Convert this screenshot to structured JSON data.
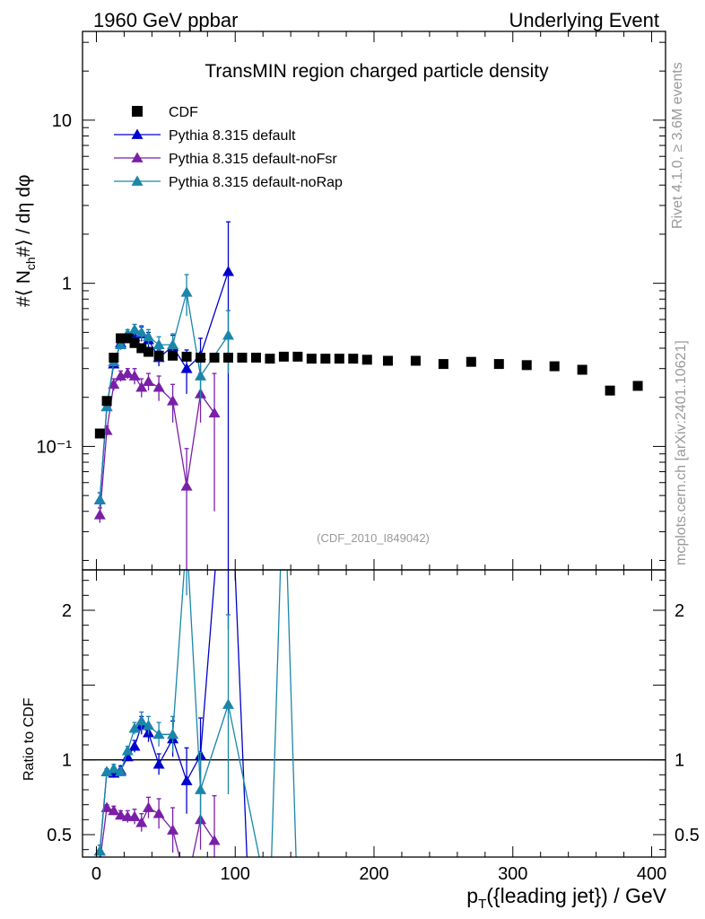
{
  "header": {
    "left": "1960 GeV ppbar",
    "right": "Underlying Event"
  },
  "side_labels": {
    "rivet": "Rivet 4.1.0, ≥ 3.6M events",
    "mcplots": "mcplots.cern.ch [arXiv:2401.10621]"
  },
  "chart_data": {
    "type": "scatter",
    "title": "TransMIN region charged particle density",
    "analysis_tag": "(CDF_2010_I849042)",
    "ylabel_main": {
      "base": "#⟨ N",
      "sub": "ch",
      "rest": "#⟩ / dη dφ"
    },
    "ylabel_ratio": "Ratio to CDF",
    "xlabel": {
      "base": "p",
      "sub": "T",
      "rest": "({leading jet}) / GeV"
    },
    "x_range": [
      -10,
      410
    ],
    "y_main_range_log": [
      0.0175,
      35
    ],
    "y_ratio_range": [
      0.35,
      2.27
    ],
    "x_ticks": [
      {
        "v": 0,
        "t": "0"
      },
      {
        "v": 100,
        "t": "100"
      },
      {
        "v": 200,
        "t": "200"
      },
      {
        "v": 300,
        "t": "300"
      },
      {
        "v": 400,
        "t": "400"
      }
    ],
    "y_main_ticks": [
      {
        "v": 0.1,
        "t": "10⁻¹"
      },
      {
        "v": 1,
        "t": "1"
      },
      {
        "v": 10,
        "t": "10"
      }
    ],
    "y_ratio_ticks": [
      {
        "v": 0.5,
        "t": "0.5"
      },
      {
        "v": 1,
        "t": "1"
      },
      {
        "v": 2,
        "t": "2"
      }
    ],
    "legend": [
      {
        "name": "CDF",
        "marker": "square",
        "color": "#000000"
      },
      {
        "name": "Pythia 8.315 default",
        "marker": "triangle",
        "color": "#0000cc"
      },
      {
        "name": "Pythia 8.315 default-noFsr",
        "marker": "triangle",
        "color": "#7a1fa8"
      },
      {
        "name": "Pythia 8.315 default-noRap",
        "marker": "triangle",
        "color": "#1a86aa"
      }
    ],
    "data": {
      "name": "CDF",
      "x": [
        2.5,
        7.5,
        12.5,
        17.5,
        22.5,
        27.5,
        32.5,
        37.5,
        45,
        55,
        65,
        75,
        85,
        95,
        105,
        115,
        125,
        135,
        145,
        155,
        165,
        175,
        185,
        195,
        210,
        230,
        250,
        270,
        290,
        310,
        330,
        350,
        370,
        390
      ],
      "y": [
        0.12,
        0.19,
        0.35,
        0.46,
        0.46,
        0.43,
        0.4,
        0.38,
        0.36,
        0.36,
        0.355,
        0.35,
        0.35,
        0.35,
        0.35,
        0.35,
        0.345,
        0.355,
        0.355,
        0.345,
        0.345,
        0.345,
        0.345,
        0.34,
        0.335,
        0.335,
        0.32,
        0.33,
        0.32,
        0.315,
        0.31,
        0.295,
        0.22,
        0.235
      ]
    },
    "series": [
      {
        "name": "Pythia 8.315 default",
        "color": "#0000cc",
        "x": [
          2.5,
          7.5,
          12.5,
          17.5,
          22.5,
          27.5,
          32.5,
          37.5,
          45,
          55,
          65,
          75,
          95
        ],
        "y": [
          0.047,
          0.175,
          0.32,
          0.43,
          0.47,
          0.47,
          0.49,
          0.45,
          0.35,
          0.41,
          0.3,
          0.36,
          1.18
        ],
        "err": [
          0.005,
          0.01,
          0.02,
          0.03,
          0.03,
          0.04,
          0.05,
          0.05,
          0.04,
          0.07,
          0.09,
          0.1,
          1.2
        ],
        "ratio": [
          0.39,
          0.92,
          0.91,
          0.93,
          1.02,
          1.09,
          1.23,
          1.18,
          0.97,
          1.14,
          0.86,
          1.03,
          3.37
        ],
        "ratio_err": [
          0.04,
          0.02,
          0.03,
          0.03,
          0.03,
          0.04,
          0.06,
          0.06,
          0.07,
          0.12,
          0.22,
          0.25,
          1.5
        ]
      },
      {
        "name": "Pythia 8.315 default-noFsr",
        "color": "#7a1fa8",
        "x": [
          2.5,
          7.5,
          12.5,
          17.5,
          22.5,
          27.5,
          32.5,
          37.5,
          45,
          55,
          65,
          75,
          85
        ],
        "y": [
          0.038,
          0.125,
          0.24,
          0.27,
          0.28,
          0.27,
          0.23,
          0.25,
          0.23,
          0.19,
          0.057,
          0.21,
          0.16
        ],
        "err": [
          0.004,
          0.008,
          0.02,
          0.02,
          0.02,
          0.03,
          0.03,
          0.03,
          0.04,
          0.05,
          0.04,
          0.07,
          0.12
        ],
        "ratio": [
          0.32,
          0.68,
          0.66,
          0.63,
          0.62,
          0.62,
          0.58,
          0.68,
          0.64,
          0.53,
          0.16,
          0.6,
          0.46
        ],
        "ratio_err": [
          0.03,
          0.02,
          0.03,
          0.03,
          0.04,
          0.05,
          0.06,
          0.07,
          0.1,
          0.15,
          0.12,
          0.2,
          0.3
        ]
      },
      {
        "name": "Pythia 8.315 default-noRap",
        "color": "#1a86aa",
        "x": [
          2.5,
          7.5,
          12.5,
          17.5,
          22.5,
          27.5,
          32.5,
          37.5,
          45,
          55,
          65,
          75,
          95
        ],
        "y": [
          0.047,
          0.175,
          0.33,
          0.42,
          0.49,
          0.52,
          0.5,
          0.47,
          0.42,
          0.42,
          0.88,
          0.27,
          0.48
        ],
        "err": [
          0.005,
          0.01,
          0.02,
          0.03,
          0.03,
          0.04,
          0.05,
          0.05,
          0.05,
          0.07,
          0.25,
          0.08,
          0.2
        ],
        "ratio": [
          0.39,
          0.92,
          0.94,
          0.92,
          1.06,
          1.21,
          1.26,
          1.23,
          1.17,
          1.17,
          2.5,
          0.8,
          1.37
        ],
        "ratio_err": [
          0.04,
          0.02,
          0.03,
          0.03,
          0.03,
          0.04,
          0.06,
          0.06,
          0.08,
          0.12,
          0.4,
          0.25,
          0.6
        ]
      }
    ],
    "ratio_extra_lines": [
      {
        "series": "Pythia 8.315 default",
        "x": [
          95,
          110
        ],
        "y": [
          3.37,
          0.0
        ]
      },
      {
        "series": "Pythia 8.315 default-noRap",
        "x": [
          95,
          125,
          135,
          145
        ],
        "y": [
          1.37,
          0.0,
          3.0,
          0.0
        ]
      }
    ]
  }
}
